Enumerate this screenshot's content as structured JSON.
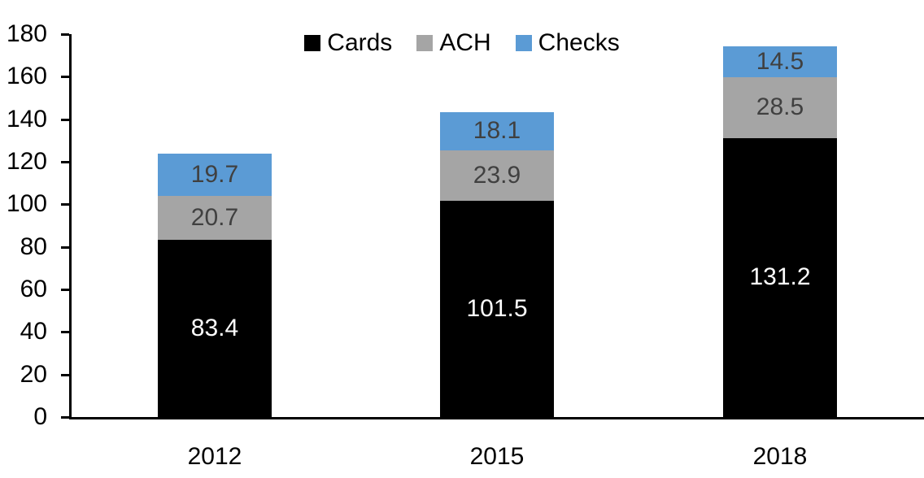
{
  "window": {
    "background": "#FFFFFF"
  },
  "chart_data": {
    "type": "bar",
    "stacked": true,
    "title": "",
    "xlabel": "",
    "ylabel": "",
    "categories": [
      "2012",
      "2015",
      "2018"
    ],
    "series": [
      {
        "name": "Cards",
        "values": [
          83.4,
          101.5,
          131.2
        ],
        "color": "#000000",
        "label_color": "#FFFFFF"
      },
      {
        "name": "ACH",
        "values": [
          20.7,
          23.9,
          28.5
        ],
        "color": "#A5A5A5",
        "label_color": "#404040"
      },
      {
        "name": "Checks",
        "values": [
          19.7,
          18.1,
          14.5
        ],
        "color": "#5B9BD5",
        "label_color": "#404040"
      }
    ],
    "totals": [
      123.8,
      143.5,
      174.2
    ],
    "value_label_decimals": 1,
    "ylim": [
      0,
      180
    ],
    "yticks": [
      0,
      20,
      40,
      60,
      80,
      100,
      120,
      140,
      160,
      180
    ],
    "grid": false,
    "legend": {
      "position": "top-center",
      "entries": [
        "Cards",
        "ACH",
        "Checks"
      ]
    },
    "axis_color": "#000000",
    "tick_label_color": "#000000"
  }
}
